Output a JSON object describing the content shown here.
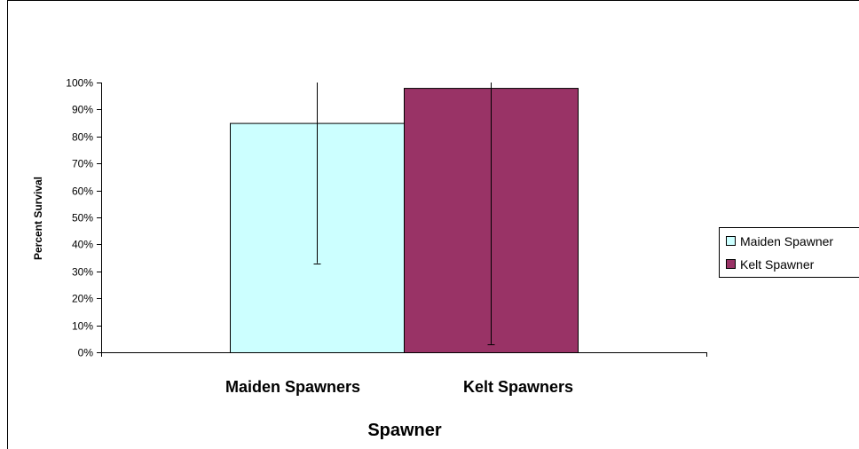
{
  "chart_data": {
    "type": "bar",
    "title": "",
    "xlabel": "Spawner",
    "ylabel": "Percent Survival",
    "categories": [
      "Maiden Spawners",
      "Kelt Spawners"
    ],
    "series": [
      {
        "name": "Maiden Spawner",
        "values": [
          85,
          null
        ],
        "error_low": [
          33,
          null
        ],
        "error_high": [
          100,
          null
        ],
        "color": "#CCFFFF"
      },
      {
        "name": "Kelt Spawner",
        "values": [
          null,
          98
        ],
        "error_low": [
          null,
          3
        ],
        "error_high": [
          null,
          100
        ],
        "color": "#993366"
      }
    ],
    "ylim": [
      0,
      100
    ],
    "yticks": [
      "0%",
      "10%",
      "20%",
      "30%",
      "40%",
      "50%",
      "60%",
      "70%",
      "80%",
      "90%",
      "100%"
    ],
    "grid": false,
    "legend_position": "right"
  }
}
